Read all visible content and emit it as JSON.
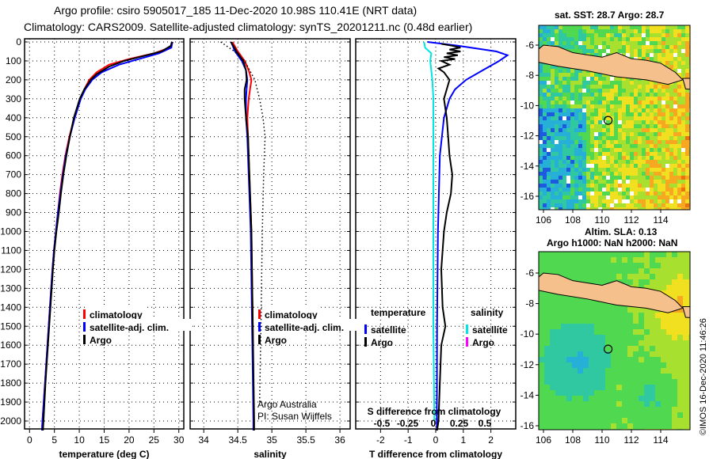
{
  "title_line1": "Argo profile: csiro 5905017_185 11-Dec-2020 10.98S 110.41E (NRT data)",
  "title_line2": "Climatology: CARS2009. Satellite-adjusted climatology: synTS_20201211.nc (0.48d earlier)",
  "map1_title": "sat. SST: 28.7 Argo: 28.7",
  "map2_title1": "Altim. SLA: 0.13",
  "map2_title2": "Argo h1000: NaN h2000: NaN",
  "credit": "©IMOS 16-Dec-2020 11:46:26",
  "attribution1": "Argo Australia",
  "attribution2": "PI: Susan Wijffels",
  "colors": {
    "climatology": "#ff0000",
    "satellite": "#0000ff",
    "argo": "#000000",
    "sal_satellite": "#00e5e5",
    "sal_argo": "#ff00ff",
    "land": "#f5c08c"
  },
  "chart_data": [
    {
      "type": "line",
      "xlabel": "temperature (deg C)",
      "ylabel": "depth",
      "xlim": [
        -1,
        31
      ],
      "ylim": [
        2050,
        0
      ],
      "xticks": [
        "0",
        "5",
        "10",
        "15",
        "20",
        "25",
        "30"
      ],
      "xtick_values": [
        0,
        5,
        10,
        15,
        20,
        25,
        30
      ],
      "yticks": [
        "0",
        "100",
        "200",
        "300",
        "400",
        "500",
        "600",
        "700",
        "800",
        "900",
        "1000",
        "1100",
        "1200",
        "1300",
        "1400",
        "1500",
        "1600",
        "1700",
        "1800",
        "1900",
        "2000"
      ],
      "legend": [
        "climatology",
        "satellite-adj. clim.",
        "Argo"
      ],
      "series": [
        {
          "name": "climatology",
          "color": "#ff0000",
          "points": [
            [
              0,
              28.8
            ],
            [
              30,
              28.2
            ],
            [
              60,
              25
            ],
            [
              90,
              20
            ],
            [
              120,
              16
            ],
            [
              160,
              13.5
            ],
            [
              200,
              12
            ],
            [
              250,
              11
            ],
            [
              300,
              10.2
            ],
            [
              400,
              9
            ],
            [
              500,
              8
            ],
            [
              600,
              7.2
            ],
            [
              700,
              6.6
            ],
            [
              800,
              6.1
            ],
            [
              900,
              5.7
            ],
            [
              1000,
              5.3
            ],
            [
              1100,
              4.9
            ],
            [
              1200,
              4.6
            ],
            [
              1400,
              4.1
            ],
            [
              1600,
              3.6
            ],
            [
              1800,
              3.1
            ],
            [
              2000,
              2.6
            ],
            [
              2050,
              2.5
            ]
          ]
        },
        {
          "name": "satellite-adj. clim.",
          "color": "#0000ff",
          "points": [
            [
              0,
              28.7
            ],
            [
              30,
              28.5
            ],
            [
              60,
              26
            ],
            [
              90,
              22
            ],
            [
              120,
              18
            ],
            [
              160,
              14.5
            ],
            [
              200,
              12.6
            ],
            [
              250,
              11.2
            ],
            [
              300,
              10.3
            ],
            [
              400,
              9.1
            ],
            [
              500,
              8.1
            ],
            [
              600,
              7.3
            ],
            [
              700,
              6.7
            ],
            [
              800,
              6.2
            ],
            [
              900,
              5.7
            ],
            [
              1000,
              5.3
            ],
            [
              1100,
              4.9
            ],
            [
              1200,
              4.6
            ],
            [
              1400,
              4.1
            ],
            [
              1600,
              3.6
            ],
            [
              1800,
              3.1
            ],
            [
              2000,
              2.6
            ],
            [
              2050,
              2.5
            ]
          ]
        },
        {
          "name": "Argo",
          "color": "#000000",
          "points": [
            [
              0,
              28.6
            ],
            [
              20,
              28.4
            ],
            [
              50,
              26.5
            ],
            [
              80,
              22
            ],
            [
              100,
              19
            ],
            [
              130,
              16
            ],
            [
              170,
              13.5
            ],
            [
              200,
              12.3
            ],
            [
              250,
              11
            ],
            [
              300,
              10.1
            ],
            [
              400,
              8.9
            ],
            [
              500,
              8.1
            ],
            [
              600,
              7.4
            ],
            [
              700,
              6.8
            ],
            [
              800,
              6.3
            ],
            [
              900,
              5.9
            ],
            [
              1000,
              5.4
            ],
            [
              1100,
              5.0
            ],
            [
              1200,
              4.7
            ],
            [
              1400,
              4.2
            ],
            [
              1600,
              3.7
            ],
            [
              1800,
              3.2
            ],
            [
              2000,
              2.8
            ],
            [
              2050,
              2.7
            ]
          ]
        }
      ]
    },
    {
      "type": "line",
      "xlabel": "salinity",
      "ylabel": "depth",
      "xlim": [
        33.8,
        36.15
      ],
      "ylim": [
        2050,
        0
      ],
      "xticks": [
        "34",
        "34.5",
        "35",
        "35.5",
        "36"
      ],
      "xtick_values": [
        34,
        34.5,
        35,
        35.5,
        36
      ],
      "legend": [
        "climatology",
        "satellite-adj. clim.",
        "Argo"
      ],
      "series": [
        {
          "name": "climatology",
          "color": "#ff0000",
          "points": [
            [
              0,
              34.42
            ],
            [
              50,
              34.5
            ],
            [
              100,
              34.6
            ],
            [
              150,
              34.66
            ],
            [
              200,
              34.7
            ],
            [
              250,
              34.68
            ],
            [
              300,
              34.66
            ],
            [
              400,
              34.64
            ],
            [
              500,
              34.65
            ],
            [
              700,
              34.67
            ],
            [
              1000,
              34.7
            ],
            [
              1500,
              34.72
            ],
            [
              2000,
              34.73
            ],
            [
              2050,
              34.73
            ]
          ]
        },
        {
          "name": "satellite-adj. clim.",
          "color": "#0000ff",
          "points": [
            [
              0,
              34.4
            ],
            [
              50,
              34.46
            ],
            [
              100,
              34.56
            ],
            [
              150,
              34.62
            ],
            [
              200,
              34.64
            ],
            [
              250,
              34.63
            ],
            [
              300,
              34.62
            ],
            [
              400,
              34.62
            ],
            [
              500,
              34.64
            ],
            [
              700,
              34.66
            ],
            [
              1000,
              34.69
            ],
            [
              1500,
              34.71
            ],
            [
              2000,
              34.73
            ],
            [
              2050,
              34.73
            ]
          ]
        },
        {
          "name": "Argo",
          "color": "#000000",
          "points": [
            [
              0,
              34.4
            ],
            [
              50,
              34.48
            ],
            [
              100,
              34.58
            ],
            [
              150,
              34.62
            ],
            [
              200,
              34.63
            ],
            [
              250,
              34.6
            ],
            [
              300,
              34.6
            ],
            [
              400,
              34.62
            ],
            [
              500,
              34.65
            ],
            [
              700,
              34.67
            ],
            [
              1000,
              34.7
            ],
            [
              1500,
              34.72
            ],
            [
              2000,
              34.74
            ],
            [
              2050,
              34.74
            ]
          ]
        },
        {
          "name": "other",
          "color": "#000000",
          "dotted": true,
          "points": [
            [
              0,
              34.25
            ],
            [
              50,
              34.45
            ],
            [
              100,
              34.6
            ],
            [
              200,
              34.75
            ],
            [
              300,
              34.82
            ],
            [
              400,
              34.87
            ],
            [
              500,
              34.9
            ],
            [
              700,
              34.88
            ],
            [
              1000,
              34.86
            ],
            [
              1500,
              34.84
            ],
            [
              1900,
              34.82
            ]
          ]
        }
      ]
    },
    {
      "type": "line",
      "xlabel": "T difference from climatology",
      "x2label": "S difference from climatology",
      "ylabel": "depth",
      "xlim": [
        -2.9,
        2.9
      ],
      "ylim": [
        2050,
        0
      ],
      "xticks": [
        "-2",
        "-1",
        "0",
        "1",
        "2"
      ],
      "xtick_values": [
        -2,
        -1,
        0,
        1,
        2
      ],
      "x2ticks": [
        "-0.5",
        "-0.25",
        "0",
        "0.25",
        "0.5"
      ],
      "x2tick_values": [
        -0.5,
        -0.25,
        0,
        0.25,
        0.5
      ],
      "legend_temperature_title": "temperature",
      "legend_salinity_title": "salinity",
      "legend": [
        "satellite",
        "Argo",
        "satellite",
        "Argo"
      ],
      "series": [
        {
          "name": "T satellite",
          "color": "#0000ff",
          "points": [
            [
              0,
              -0.3
            ],
            [
              20,
              0.8
            ],
            [
              50,
              2.2
            ],
            [
              70,
              2.6
            ],
            [
              100,
              2.3
            ],
            [
              150,
              1.7
            ],
            [
              200,
              1.1
            ],
            [
              250,
              0.7
            ],
            [
              300,
              0.5
            ],
            [
              400,
              0.3
            ],
            [
              600,
              0.15
            ],
            [
              1000,
              0.08
            ],
            [
              1500,
              0.05
            ],
            [
              2000,
              0.04
            ],
            [
              2050,
              0.04
            ]
          ]
        },
        {
          "name": "T Argo",
          "color": "#000000",
          "points": [
            [
              10,
              0.2
            ],
            [
              20,
              0.6
            ],
            [
              30,
              0.9
            ],
            [
              40,
              0.5
            ],
            [
              50,
              0.9
            ],
            [
              60,
              0.4
            ],
            [
              70,
              0.8
            ],
            [
              80,
              0.3
            ],
            [
              90,
              0.7
            ],
            [
              100,
              0.2
            ],
            [
              120,
              0.5
            ],
            [
              140,
              0.1
            ],
            [
              160,
              0.3
            ],
            [
              200,
              0.5
            ],
            [
              250,
              0.4
            ],
            [
              300,
              0.3
            ],
            [
              400,
              0.4
            ],
            [
              500,
              0.45
            ],
            [
              600,
              0.5
            ],
            [
              700,
              0.6
            ],
            [
              800,
              0.55
            ],
            [
              900,
              0.4
            ],
            [
              1000,
              0.3
            ],
            [
              1200,
              0.2
            ],
            [
              1400,
              0.25
            ],
            [
              1500,
              0.35
            ],
            [
              1600,
              0.2
            ],
            [
              1800,
              0.15
            ],
            [
              2000,
              0.1
            ],
            [
              2050,
              0.05
            ]
          ]
        },
        {
          "name": "S satellite",
          "color": "#00e5e5",
          "points": [
            [
              0,
              -0.09
            ],
            [
              30,
              -0.08
            ],
            [
              60,
              -0.02
            ],
            [
              100,
              -0.03
            ],
            [
              200,
              -0.01
            ],
            [
              300,
              0.0
            ],
            [
              500,
              0.0
            ],
            [
              1000,
              0.0
            ],
            [
              1500,
              0.0
            ],
            [
              2000,
              0.01
            ]
          ]
        },
        {
          "name": "S Argo",
          "color": "#ff00ff",
          "points": []
        }
      ]
    },
    {
      "type": "heatmap",
      "title": "sat. SST: 28.7 Argo: 28.7",
      "xticks": [
        "106",
        "108",
        "110",
        "112",
        "114"
      ],
      "yticks": [
        "-6",
        "-8",
        "-10",
        "-12",
        "-14",
        "-16"
      ],
      "marker": [
        110.41,
        -10.98
      ]
    },
    {
      "type": "heatmap",
      "title": "Argo h1000: NaN h2000: NaN",
      "xticks": [
        "106",
        "108",
        "110",
        "112",
        "114"
      ],
      "yticks": [
        "-6",
        "-8",
        "-10",
        "-12",
        "-14",
        "-16"
      ],
      "marker": [
        110.41,
        -10.98
      ]
    }
  ]
}
